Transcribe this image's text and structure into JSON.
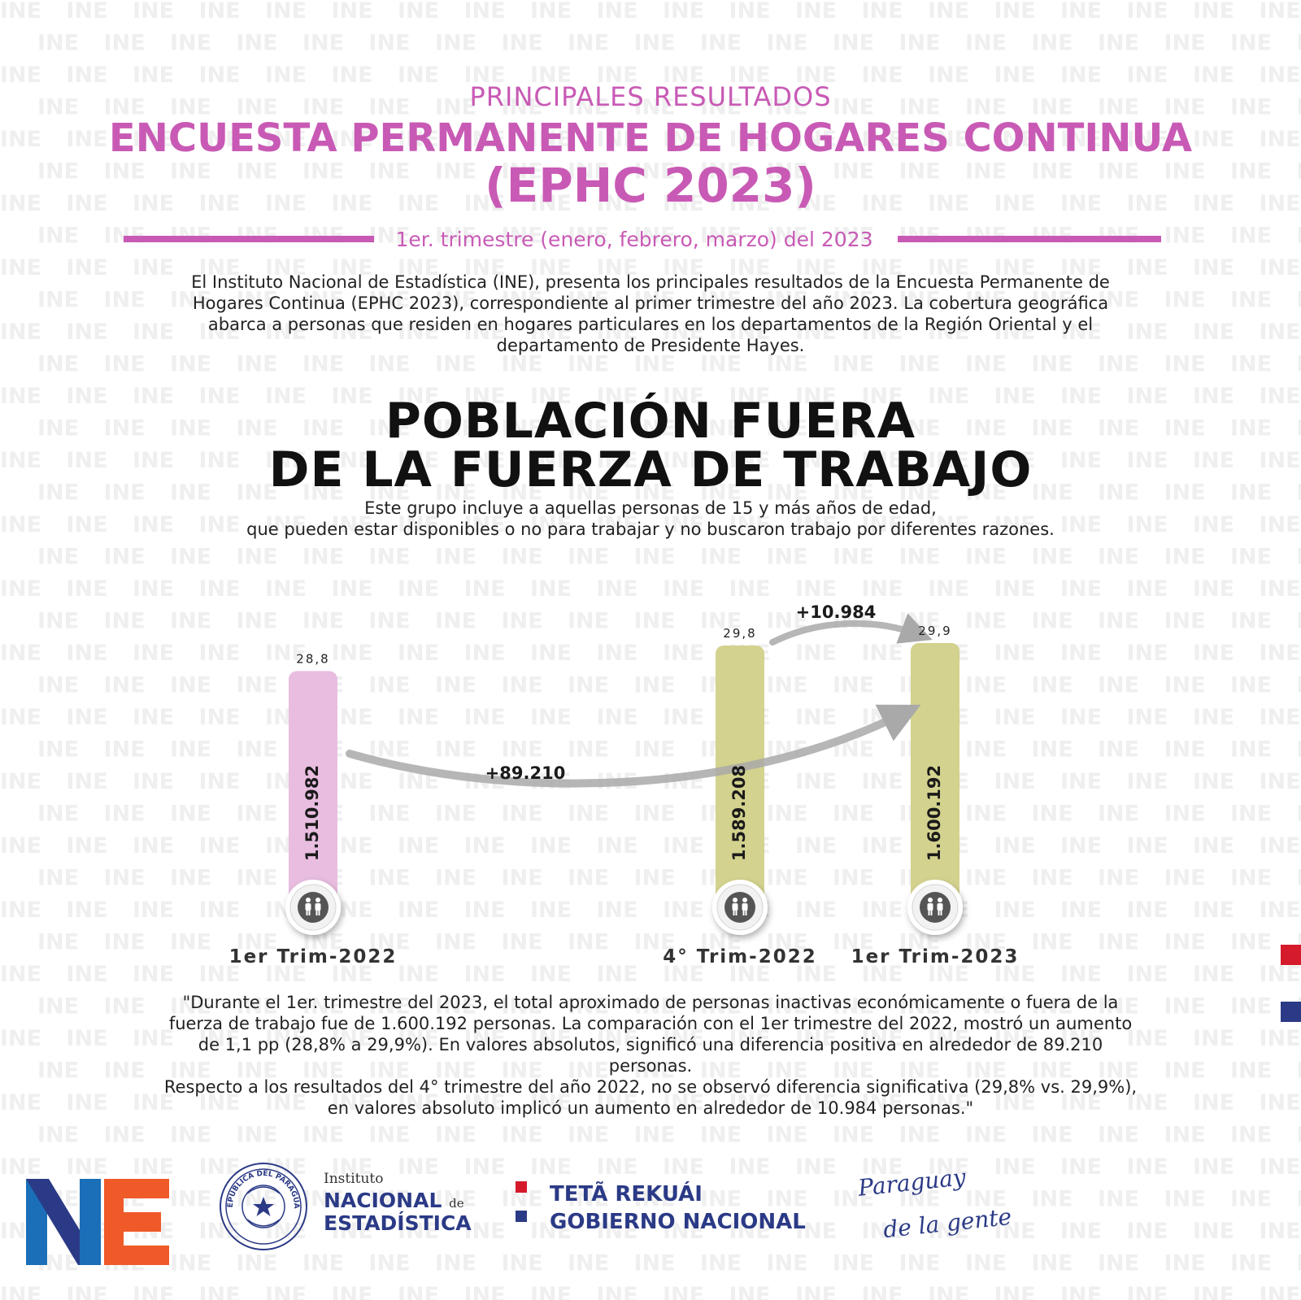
{
  "header": {
    "kicker": "PRINCIPALES RESULTADOS",
    "title_line1": "ENCUESTA PERMANENTE DE HOGARES CONTINUA",
    "title_line2": "(EPHC 2023)",
    "period": "1er. trimestre  (enero, febrero, marzo) del 2023",
    "accent_color": "#c85ab5"
  },
  "intro": {
    "text": "El Instituto Nacional de Estadística (INE), presenta los principales resultados de la Encuesta Permanente de Hogares Continua (EPHC 2023), correspondiente al primer trimestre del año 2023.  La cobertura geográfica abarca a personas que residen en hogares particulares en los departamentos de la Región Oriental y el departamento de Presidente Hayes."
  },
  "section": {
    "title_line1": "POBLACIÓN FUERA",
    "title_line2": "DE LA FUERZA DE TRABAJO",
    "desc_line1": "Este grupo incluye a aquellas personas de 15 y más años de edad,",
    "desc_line2": "que pueden estar disponibles o no para trabajar y no buscaron trabajo por diferentes razones."
  },
  "chart_data": {
    "type": "bar",
    "categories": [
      "1er Trim-2022",
      "4° Trim-2022",
      "1er Trim-2023"
    ],
    "values": [
      1510982,
      1589208,
      1600192
    ],
    "value_labels": [
      "1.510.982",
      "1.589.208",
      "1.600.192"
    ],
    "percents": [
      28.8,
      29.8,
      29.9
    ],
    "percent_labels": [
      "28,8",
      "29,8",
      "29,9"
    ],
    "bar_colors": [
      "#e8bde0",
      "#d3d28e",
      "#d3d28e"
    ],
    "annotations": [
      {
        "label": "+89.210",
        "from": 0,
        "to": 2
      },
      {
        "label": "+10.984",
        "from": 1,
        "to": 2
      }
    ],
    "icon": "people-icon",
    "title": "",
    "xlabel": "",
    "ylabel": ""
  },
  "quote": {
    "line1": "\"Durante el 1er. trimestre del 2023, el total aproximado de personas inactivas económicamente o fuera de la fuerza de trabajo fue de 1.600.192 personas. La comparación con el 1er trimestre del 2022, mostró un aumento de 1,1 pp (28,8% a 29,9%). En valores absolutos, significó una diferencia positiva en alrededor de 89.210 personas.",
    "line2": "Respecto a los resultados del 4° trimestre del año 2022, no se observó diferencia significativa (29,8% vs. 29,9%), en valores absoluto implicó un aumento en alrededor de 10.984 personas.\""
  },
  "footer": {
    "seal_text": "REPÚBLICA DEL PARAGUAY",
    "org_line1": "Instituto",
    "org_line2": "NACIONAL",
    "org_line2_small": "de",
    "org_line3": "ESTADÍSTICA",
    "gov_line1": "TETÃ REKUÁI",
    "gov_line2": "GOBIERNO NACIONAL",
    "slogan_line1": "Paraguay",
    "slogan_line2": "de la gente"
  },
  "watermark_text": "INE"
}
